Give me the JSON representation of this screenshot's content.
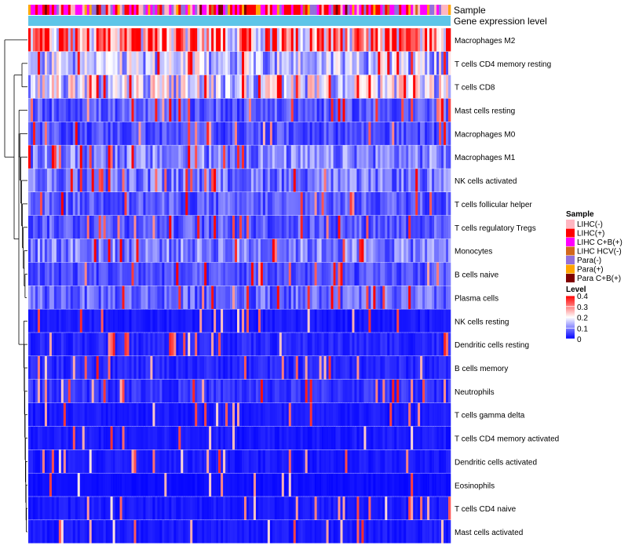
{
  "chart_data": {
    "type": "heatmap",
    "title": "",
    "annotation_tracks": [
      "Sample",
      "Gene expression level"
    ],
    "rows": [
      {
        "label": "Macrophages M2",
        "mean_level": 0.3
      },
      {
        "label": "T cells CD4 memory resting",
        "mean_level": 0.15
      },
      {
        "label": "T cells CD8",
        "mean_level": 0.17
      },
      {
        "label": "Mast cells resting",
        "mean_level": 0.07
      },
      {
        "label": "Macrophages M0",
        "mean_level": 0.06
      },
      {
        "label": "Macrophages M1",
        "mean_level": 0.1
      },
      {
        "label": "NK cells activated",
        "mean_level": 0.09
      },
      {
        "label": "T cells follicular helper",
        "mean_level": 0.07
      },
      {
        "label": "T cells regulatory  Tregs",
        "mean_level": 0.07
      },
      {
        "label": "Monocytes",
        "mean_level": 0.1
      },
      {
        "label": "B cells naive",
        "mean_level": 0.06
      },
      {
        "label": "Plasma cells",
        "mean_level": 0.08
      },
      {
        "label": "NK cells resting",
        "mean_level": 0.02
      },
      {
        "label": "Dendritic cells resting",
        "mean_level": 0.03
      },
      {
        "label": "B cells memory",
        "mean_level": 0.03
      },
      {
        "label": "Neutrophils",
        "mean_level": 0.04
      },
      {
        "label": "T cells gamma delta",
        "mean_level": 0.02
      },
      {
        "label": "T cells CD4 memory activated",
        "mean_level": 0.02
      },
      {
        "label": "Dendritic cells activated",
        "mean_level": 0.02
      },
      {
        "label": "Eosinophils",
        "mean_level": 0.01
      },
      {
        "label": "T cells CD4 naive",
        "mean_level": 0.02
      },
      {
        "label": "Mast cells activated",
        "mean_level": 0.02
      }
    ],
    "sample_legend": {
      "title": "Sample",
      "items": [
        {
          "label": "LIHC(-)",
          "color": "#ffb6c1"
        },
        {
          "label": "LIHC(+)",
          "color": "#ff0000"
        },
        {
          "label": "LIHC C+B(+)",
          "color": "#ff00ff"
        },
        {
          "label": "LIHC HCV(-)",
          "color": "#d2691e"
        },
        {
          "label": "Para(-)",
          "color": "#9370db"
        },
        {
          "label": "Para(+)",
          "color": "#ffa500"
        },
        {
          "label": "Para C+B(+)",
          "color": "#800000"
        }
      ]
    },
    "level_legend": {
      "title": "Level",
      "ticks": [
        "0.4",
        "0.3",
        "0.2",
        "0.1",
        "0"
      ],
      "range": [
        0,
        0.4
      ],
      "colors": [
        "#0000ff",
        "#ffffff",
        "#ff0000"
      ]
    },
    "gene_expression_color": "#5ec5e8"
  }
}
